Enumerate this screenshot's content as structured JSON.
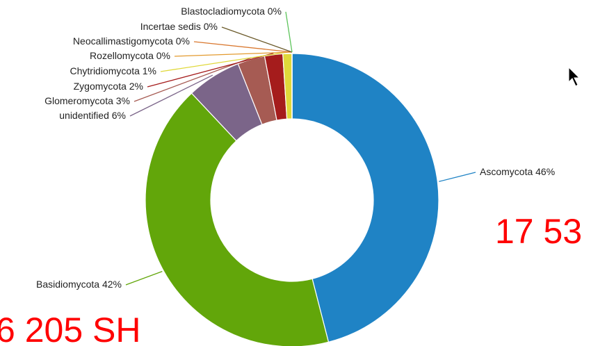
{
  "chart_data": {
    "type": "donut",
    "categories": [
      "Ascomycota",
      "Basidiomycota",
      "unidentified",
      "Glomeromycota",
      "Zygomycota",
      "Chytridiomycota",
      "Rozellomycota",
      "Neocallimastigomycota",
      "Incertae sedis",
      "Blastocladiomycota"
    ],
    "values": [
      46,
      42,
      6,
      3,
      2,
      1,
      0,
      0,
      0,
      0
    ],
    "value_labels": [
      "46%",
      "42%",
      "6%",
      "3%",
      "2%",
      "1%",
      "0%",
      "0%",
      "0%",
      "0%"
    ],
    "colors": [
      "#1f83c5",
      "#62a60a",
      "#7b6589",
      "#a65b53",
      "#a51c1c",
      "#e0d83a",
      "#e39a2e",
      "#d9782f",
      "#6b5a2a",
      "#5dc45b"
    ],
    "annotations": [
      "17 53",
      "6 205 SH"
    ]
  }
}
